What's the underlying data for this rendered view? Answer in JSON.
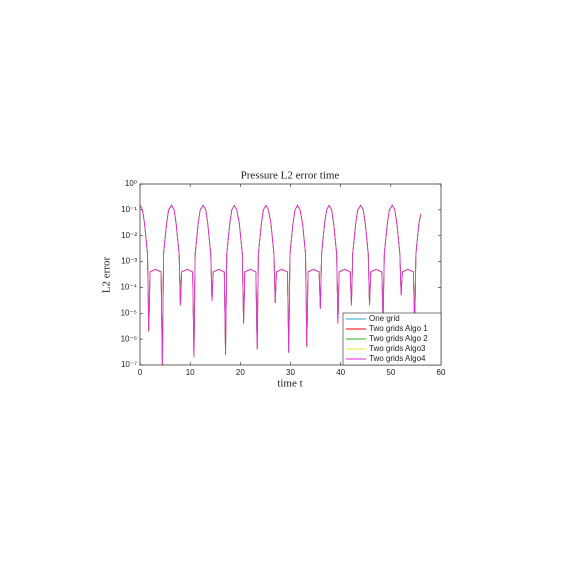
{
  "chart_data": {
    "type": "line",
    "title": "Pressure L2 error time",
    "xlabel": "time t",
    "ylabel": "L2 error",
    "x": [
      0,
      0.5,
      0.9,
      1.5,
      1.75,
      2.0,
      3.1,
      4.2,
      4.45,
      4.7,
      5.3,
      5.7,
      6.3,
      6.8,
      7.2,
      7.8,
      8.05,
      8.3,
      9.4,
      10.5,
      10.75,
      11.0,
      11.6,
      12.0,
      12.6,
      13.1,
      13.5,
      14.1,
      14.35,
      14.6,
      15.7,
      16.8,
      17.05,
      17.3,
      17.9,
      18.3,
      18.8,
      19.3,
      19.8,
      20.4,
      20.65,
      20.9,
      22.0,
      23.1,
      23.35,
      23.6,
      24.2,
      24.6,
      25.1,
      25.6,
      26.1,
      26.7,
      26.95,
      27.2,
      28.3,
      29.4,
      29.65,
      29.9,
      30.5,
      30.9,
      31.4,
      31.9,
      32.4,
      33.0,
      33.25,
      33.5,
      34.6,
      35.7,
      35.95,
      36.2,
      36.8,
      37.2,
      37.7,
      38.2,
      38.6,
      39.2,
      39.45,
      39.7,
      40.8,
      41.9,
      42.15,
      42.4,
      43.0,
      43.4,
      44.0,
      44.5,
      44.9,
      45.5,
      45.75,
      46.0,
      47.1,
      48.2,
      48.45,
      48.7,
      49.3,
      49.7,
      50.3,
      50.8,
      51.2,
      51.8,
      52.05,
      52.3,
      53.4,
      54.5,
      54.75,
      55.0,
      55.6,
      56.0
    ],
    "series": [
      {
        "name": "One grid",
        "color": "#2fa8c8",
        "values": [
          0.15,
          0.1,
          0.03,
          0.002,
          2e-06,
          0.0004,
          0.0005,
          0.0004,
          1e-07,
          0.002,
          0.03,
          0.1,
          0.15,
          0.1,
          0.03,
          0.002,
          2e-05,
          0.0004,
          0.0005,
          0.0004,
          2e-07,
          0.002,
          0.03,
          0.1,
          0.15,
          0.1,
          0.03,
          0.002,
          3e-05,
          0.0004,
          0.0005,
          0.0004,
          2.5e-07,
          0.002,
          0.03,
          0.1,
          0.15,
          0.1,
          0.03,
          0.002,
          4e-06,
          0.0004,
          0.0005,
          0.0004,
          4e-07,
          0.002,
          0.03,
          0.1,
          0.15,
          0.1,
          0.03,
          0.002,
          2.5e-05,
          0.0004,
          0.0005,
          0.0004,
          3e-07,
          0.002,
          0.03,
          0.1,
          0.15,
          0.1,
          0.03,
          0.002,
          5e-07,
          0.0004,
          0.0005,
          0.0004,
          1.5e-05,
          0.002,
          0.03,
          0.1,
          0.15,
          0.1,
          0.03,
          0.002,
          4e-06,
          0.0004,
          0.0005,
          0.0004,
          2e-05,
          0.002,
          0.03,
          0.1,
          0.15,
          0.1,
          0.03,
          0.002,
          2e-05,
          0.0004,
          0.0005,
          0.0004,
          5e-06,
          0.002,
          0.03,
          0.1,
          0.15,
          0.1,
          0.03,
          0.002,
          5e-05,
          0.0004,
          0.0005,
          0.0004,
          3e-06,
          0.002,
          0.03,
          0.07
        ]
      },
      {
        "name": "Two grids Algo 1",
        "color": "#ff0000",
        "values": [
          0.15,
          0.1,
          0.03,
          0.002,
          2e-06,
          0.0004,
          0.0005,
          0.0004,
          1e-07,
          0.002,
          0.03,
          0.1,
          0.15,
          0.1,
          0.03,
          0.002,
          2e-05,
          0.0004,
          0.0005,
          0.0004,
          2e-07,
          0.002,
          0.03,
          0.1,
          0.15,
          0.1,
          0.03,
          0.002,
          3e-05,
          0.0004,
          0.0005,
          0.0004,
          2.5e-07,
          0.002,
          0.03,
          0.1,
          0.15,
          0.1,
          0.03,
          0.002,
          4e-06,
          0.0004,
          0.0005,
          0.0004,
          4e-07,
          0.002,
          0.03,
          0.1,
          0.15,
          0.1,
          0.03,
          0.002,
          2.5e-05,
          0.0004,
          0.0005,
          0.0004,
          3e-07,
          0.002,
          0.03,
          0.1,
          0.15,
          0.1,
          0.03,
          0.002,
          5e-07,
          0.0004,
          0.0005,
          0.0004,
          1.5e-05,
          0.002,
          0.03,
          0.1,
          0.15,
          0.1,
          0.03,
          0.002,
          4e-06,
          0.0004,
          0.0005,
          0.0004,
          2e-05,
          0.002,
          0.03,
          0.1,
          0.15,
          0.1,
          0.03,
          0.002,
          2e-05,
          0.0004,
          0.0005,
          0.0004,
          5e-06,
          0.002,
          0.03,
          0.1,
          0.15,
          0.1,
          0.03,
          0.002,
          5e-05,
          0.0004,
          0.0005,
          0.0004,
          3e-06,
          0.002,
          0.03,
          0.07
        ]
      },
      {
        "name": "Two grids Algo 2",
        "color": "#22bb22",
        "values": [
          0.15,
          0.1,
          0.03,
          0.002,
          2e-06,
          0.0004,
          0.0005,
          0.0004,
          1e-07,
          0.002,
          0.03,
          0.1,
          0.15,
          0.1,
          0.03,
          0.002,
          2e-05,
          0.0004,
          0.0005,
          0.0004,
          2e-07,
          0.002,
          0.03,
          0.1,
          0.15,
          0.1,
          0.03,
          0.002,
          3e-05,
          0.0004,
          0.0005,
          0.0004,
          2.5e-07,
          0.002,
          0.03,
          0.1,
          0.15,
          0.1,
          0.03,
          0.002,
          4e-06,
          0.0004,
          0.0005,
          0.0004,
          4e-07,
          0.002,
          0.03,
          0.1,
          0.15,
          0.1,
          0.03,
          0.002,
          2.5e-05,
          0.0004,
          0.0005,
          0.0004,
          3e-07,
          0.002,
          0.03,
          0.1,
          0.15,
          0.1,
          0.03,
          0.002,
          5e-07,
          0.0004,
          0.0005,
          0.0004,
          1.5e-05,
          0.002,
          0.03,
          0.1,
          0.15,
          0.1,
          0.03,
          0.002,
          4e-06,
          0.0004,
          0.0005,
          0.0004,
          2e-05,
          0.002,
          0.03,
          0.1,
          0.15,
          0.1,
          0.03,
          0.002,
          2e-05,
          0.0004,
          0.0005,
          0.0004,
          5e-06,
          0.002,
          0.03,
          0.1,
          0.15,
          0.1,
          0.03,
          0.002,
          5e-05,
          0.0004,
          0.0005,
          0.0004,
          3e-06,
          0.002,
          0.03,
          0.07
        ]
      },
      {
        "name": "Two grids Algo3",
        "color": "#f2e33a",
        "values": [
          0.15,
          0.1,
          0.03,
          0.002,
          2e-06,
          0.0004,
          0.0005,
          0.0004,
          1e-07,
          0.002,
          0.03,
          0.1,
          0.15,
          0.1,
          0.03,
          0.002,
          2e-05,
          0.0004,
          0.0005,
          0.0004,
          2e-07,
          0.002,
          0.03,
          0.1,
          0.15,
          0.1,
          0.03,
          0.002,
          3e-05,
          0.0004,
          0.0005,
          0.0004,
          2.5e-07,
          0.002,
          0.03,
          0.1,
          0.15,
          0.1,
          0.03,
          0.002,
          4e-06,
          0.0004,
          0.0005,
          0.0004,
          4e-07,
          0.002,
          0.03,
          0.1,
          0.15,
          0.1,
          0.03,
          0.002,
          2.5e-05,
          0.0004,
          0.0005,
          0.0004,
          3e-07,
          0.002,
          0.03,
          0.1,
          0.15,
          0.1,
          0.03,
          0.002,
          5e-07,
          0.0004,
          0.0005,
          0.0004,
          1.5e-05,
          0.002,
          0.03,
          0.1,
          0.15,
          0.1,
          0.03,
          0.002,
          4e-06,
          0.0004,
          0.0005,
          0.0004,
          2e-05,
          0.002,
          0.03,
          0.1,
          0.15,
          0.1,
          0.03,
          0.002,
          2e-05,
          0.0004,
          0.0005,
          0.0004,
          5e-06,
          0.002,
          0.03,
          0.1,
          0.15,
          0.1,
          0.03,
          0.002,
          5e-05,
          0.0004,
          0.0005,
          0.0004,
          3e-06,
          0.002,
          0.03,
          0.07
        ]
      },
      {
        "name": "Two grids Algo4",
        "color": "#e020e0",
        "values": [
          0.15,
          0.1,
          0.03,
          0.002,
          2e-06,
          0.0004,
          0.0005,
          0.0004,
          1e-07,
          0.002,
          0.03,
          0.1,
          0.15,
          0.1,
          0.03,
          0.002,
          2e-05,
          0.0004,
          0.0005,
          0.0004,
          2e-07,
          0.002,
          0.03,
          0.1,
          0.15,
          0.1,
          0.03,
          0.002,
          3e-05,
          0.0004,
          0.0005,
          0.0004,
          2.5e-07,
          0.002,
          0.03,
          0.1,
          0.15,
          0.1,
          0.03,
          0.002,
          4e-06,
          0.0004,
          0.0005,
          0.0004,
          4e-07,
          0.002,
          0.03,
          0.1,
          0.15,
          0.1,
          0.03,
          0.002,
          2.5e-05,
          0.0004,
          0.0005,
          0.0004,
          3e-07,
          0.002,
          0.03,
          0.1,
          0.15,
          0.1,
          0.03,
          0.002,
          5e-07,
          0.0004,
          0.0005,
          0.0004,
          1.5e-05,
          0.002,
          0.03,
          0.1,
          0.15,
          0.1,
          0.03,
          0.002,
          4e-06,
          0.0004,
          0.0005,
          0.0004,
          2e-05,
          0.002,
          0.03,
          0.1,
          0.15,
          0.1,
          0.03,
          0.002,
          2e-05,
          0.0004,
          0.0005,
          0.0004,
          5e-06,
          0.002,
          0.03,
          0.1,
          0.15,
          0.1,
          0.03,
          0.002,
          5e-05,
          0.0004,
          0.0005,
          0.0004,
          3e-06,
          0.002,
          0.03,
          0.07
        ]
      }
    ],
    "xlim": [
      0,
      60
    ],
    "xticks": [
      0,
      10,
      20,
      30,
      40,
      50,
      60
    ],
    "ylim": [
      1e-07,
      1
    ],
    "ylog": true,
    "yticks": [
      {
        "value": 1e-07,
        "label": "10⁻⁷"
      },
      {
        "value": 1e-06,
        "label": "10⁻⁶"
      },
      {
        "value": 1e-05,
        "label": "10⁻⁵"
      },
      {
        "value": 0.0001,
        "label": "10⁻⁴"
      },
      {
        "value": 0.001,
        "label": "10⁻³"
      },
      {
        "value": 0.01,
        "label": "10⁻²"
      },
      {
        "value": 0.1,
        "label": "10⁻¹"
      },
      {
        "value": 1,
        "label": "10⁰"
      }
    ],
    "grid": false,
    "legend": "lower right"
  }
}
